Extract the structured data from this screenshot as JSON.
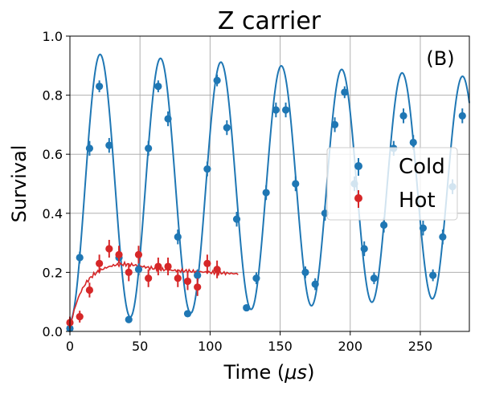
{
  "chart_data": {
    "type": "scatter",
    "title": "Z carrier",
    "xlabel_main": "Time (",
    "xlabel_symbol": "μs",
    "xlabel_end": ")",
    "ylabel": "Survival",
    "annotation": "(B)",
    "xlim": [
      0,
      285
    ],
    "ylim": [
      0.0,
      1.0
    ],
    "xticks": [
      0,
      50,
      100,
      150,
      200,
      250
    ],
    "yticks": [
      0.0,
      0.2,
      0.4,
      0.6,
      0.8,
      1.0
    ],
    "xtick_labels": [
      "0",
      "50",
      "100",
      "150",
      "200",
      "250"
    ],
    "ytick_labels": [
      "0.0",
      "0.2",
      "0.4",
      "0.6",
      "0.8",
      "1.0"
    ],
    "grid": true,
    "legend_placement": "center-right",
    "series": [
      {
        "name": "Cold",
        "color": "#1f77b4",
        "points": [
          [
            0,
            0.01,
            0.01
          ],
          [
            7,
            0.25,
            0.02
          ],
          [
            14,
            0.62,
            0.025
          ],
          [
            21,
            0.83,
            0.02
          ],
          [
            28,
            0.63,
            0.025
          ],
          [
            35,
            0.25,
            0.02
          ],
          [
            42,
            0.04,
            0.01
          ],
          [
            49,
            0.21,
            0.02
          ],
          [
            56,
            0.62,
            0.025
          ],
          [
            63,
            0.83,
            0.02
          ],
          [
            70,
            0.72,
            0.025
          ],
          [
            77,
            0.32,
            0.025
          ],
          [
            84,
            0.06,
            0.01
          ],
          [
            91,
            0.19,
            0.02
          ],
          [
            98,
            0.55,
            0.025
          ],
          [
            105,
            0.85,
            0.02
          ],
          [
            112,
            0.69,
            0.025
          ],
          [
            119,
            0.38,
            0.025
          ],
          [
            126,
            0.08,
            0.01
          ],
          [
            133,
            0.18,
            0.02
          ],
          [
            140,
            0.47,
            0.025
          ],
          [
            147,
            0.75,
            0.025
          ],
          [
            154,
            0.75,
            0.025
          ],
          [
            161,
            0.5,
            0.025
          ],
          [
            168,
            0.2,
            0.02
          ],
          [
            175,
            0.16,
            0.02
          ],
          [
            182,
            0.4,
            0.025
          ],
          [
            189,
            0.7,
            0.025
          ],
          [
            196,
            0.81,
            0.02
          ],
          [
            203,
            0.5,
            0.025
          ],
          [
            210,
            0.28,
            0.025
          ],
          [
            217,
            0.18,
            0.02
          ],
          [
            224,
            0.36,
            0.025
          ],
          [
            231,
            0.62,
            0.025
          ],
          [
            238,
            0.73,
            0.025
          ],
          [
            245,
            0.64,
            0.025
          ],
          [
            252,
            0.35,
            0.025
          ],
          [
            259,
            0.19,
            0.02
          ],
          [
            266,
            0.32,
            0.025
          ],
          [
            273,
            0.49,
            0.025
          ],
          [
            280,
            0.73,
            0.025
          ]
        ],
        "fit": {
          "offset": 0.49,
          "amplitude": 0.455,
          "period": 43.1,
          "decay_per_us": 0.0007
        }
      },
      {
        "name": "Hot",
        "color": "#d62728",
        "points": [
          [
            0,
            0.03,
            0.02
          ],
          [
            7,
            0.05,
            0.02
          ],
          [
            14,
            0.14,
            0.025
          ],
          [
            21,
            0.23,
            0.03
          ],
          [
            28,
            0.28,
            0.03
          ],
          [
            35,
            0.26,
            0.03
          ],
          [
            42,
            0.2,
            0.03
          ],
          [
            49,
            0.26,
            0.03
          ],
          [
            56,
            0.18,
            0.03
          ],
          [
            63,
            0.22,
            0.03
          ],
          [
            70,
            0.22,
            0.03
          ],
          [
            77,
            0.18,
            0.03
          ],
          [
            84,
            0.17,
            0.03
          ],
          [
            91,
            0.15,
            0.03
          ],
          [
            98,
            0.23,
            0.03
          ],
          [
            105,
            0.21,
            0.03
          ]
        ],
        "fit": {
          "x_end": 120
        }
      }
    ]
  }
}
